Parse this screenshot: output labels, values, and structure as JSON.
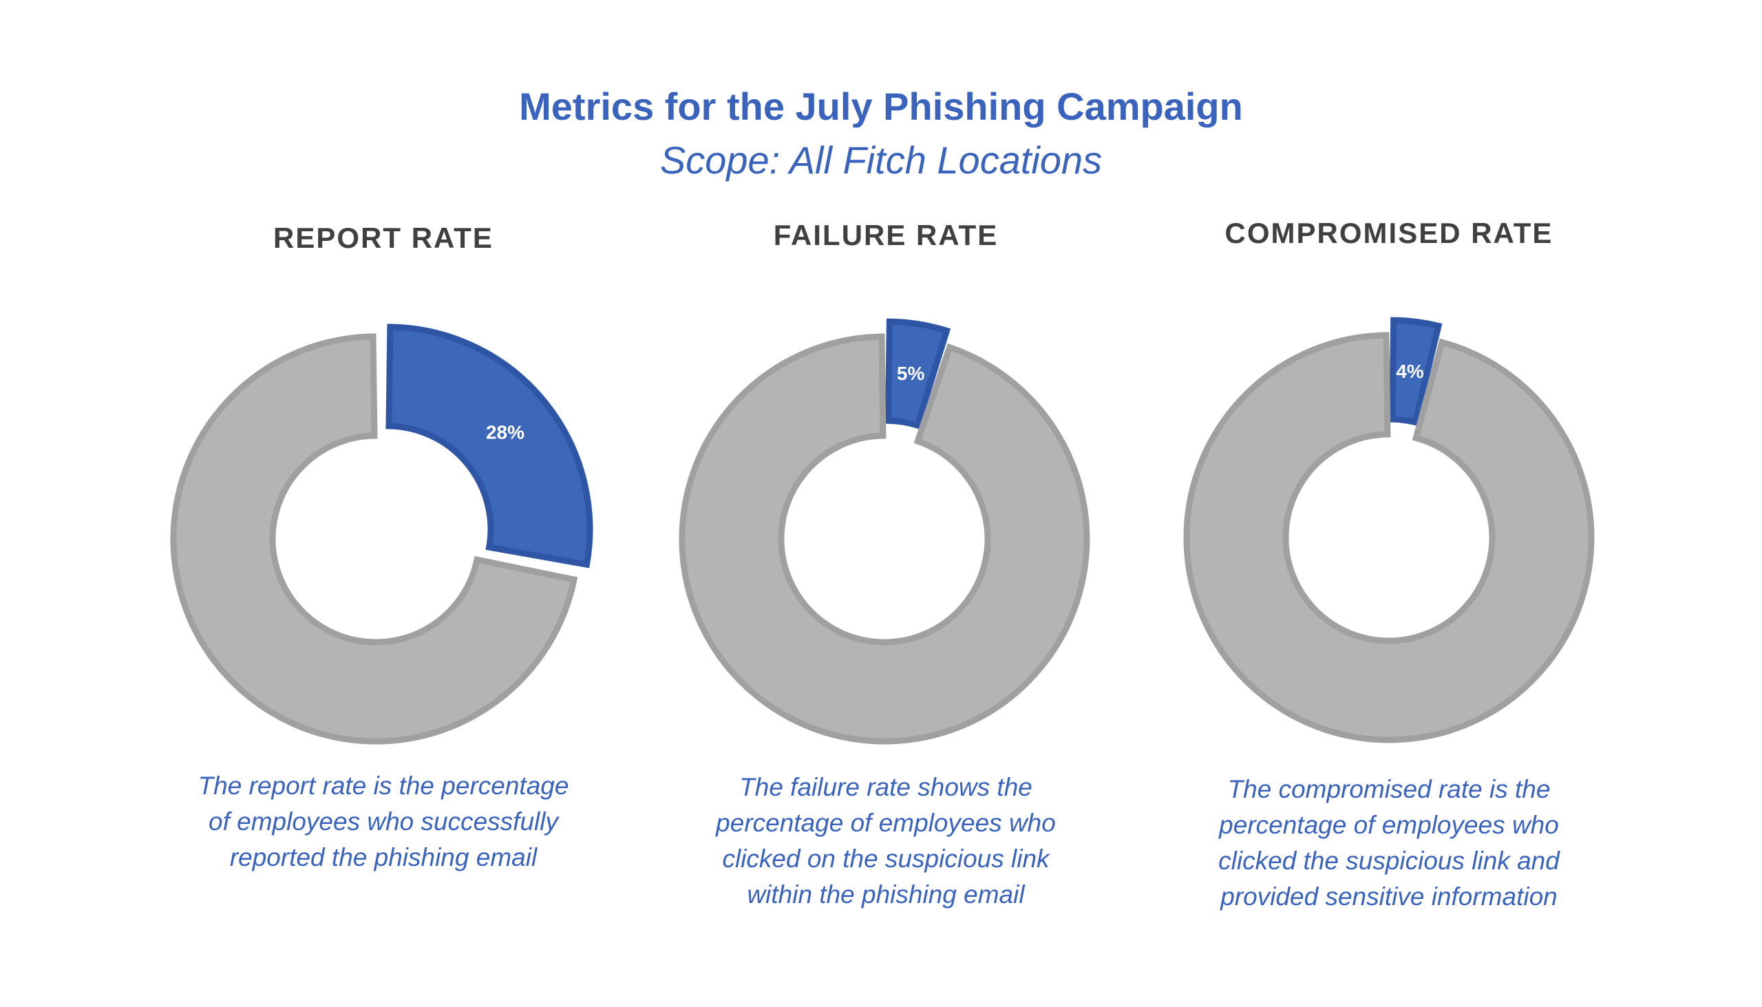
{
  "title": "Metrics for the July Phishing Campaign",
  "subtitle": "Scope: All Fitch Locations",
  "colors": {
    "highlight": "#3d67b9",
    "highlight_stroke": "#2f55a5",
    "remainder": "#b4b4b4",
    "remainder_stroke": "#a0a0a0",
    "text_blue": "#3a63be",
    "heading": "#404040"
  },
  "chart_data": [
    {
      "type": "pie",
      "variant": "donut-exploded",
      "title": "REPORT RATE",
      "values": [
        28,
        72
      ],
      "data_labels": [
        "28%",
        ""
      ],
      "description": [
        "The report rate is the percentage",
        "of employees who successfully",
        "reported the phishing email"
      ]
    },
    {
      "type": "pie",
      "variant": "donut-exploded",
      "title": "FAILURE RATE",
      "values": [
        5,
        95
      ],
      "data_labels": [
        "5%",
        ""
      ],
      "description": [
        "The failure rate shows the",
        "percentage of employees who",
        "clicked on the suspicious link",
        "within the phishing email"
      ]
    },
    {
      "type": "pie",
      "variant": "donut-exploded",
      "title": "COMPROMISED RATE",
      "values": [
        4,
        96
      ],
      "data_labels": [
        "4%",
        ""
      ],
      "description": [
        "The compromised rate is the",
        "percentage of employees who",
        "clicked the suspicious link and",
        "provided sensitive information"
      ]
    }
  ]
}
